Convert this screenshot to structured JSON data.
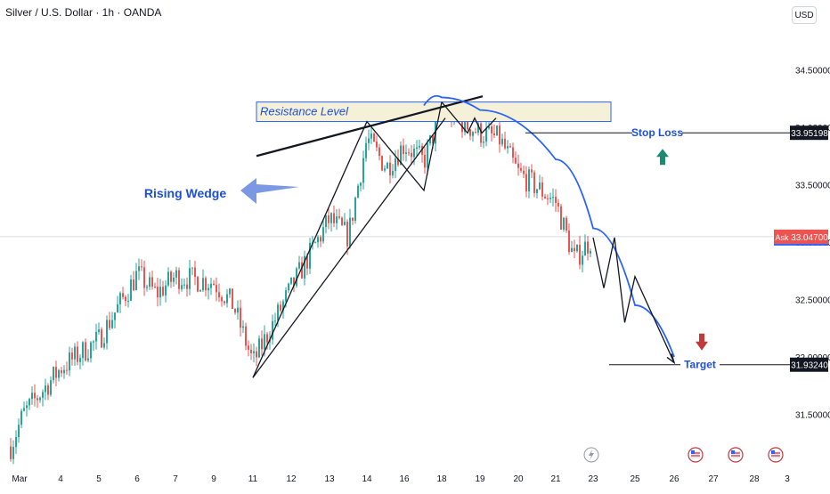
{
  "header": {
    "title": "Silver / U.S. Dollar · 1h · OANDA",
    "currency": "USD"
  },
  "annotations": {
    "resistance": "Resistance Level",
    "wedge": "Rising Wedge",
    "stop_loss": "Stop Loss",
    "target": "Target"
  },
  "price_labels": {
    "stop": "33.95198",
    "ask_tag": "Ask",
    "ask": "33.04700",
    "target": "31.93240"
  },
  "colors": {
    "up": "#26a69a",
    "down": "#ef5350",
    "curve": "#2962ff",
    "text_blue": "#1e4fd8",
    "resistance_fill": "#f5f0d8",
    "arrow_blue": "#7a98e3",
    "green_arrow": "#1e8a6e",
    "red_arrow": "#c0393b",
    "ask": "#ef5350"
  },
  "chart_data": {
    "type": "candlestick",
    "title": "Silver / U.S. Dollar · 1h · OANDA",
    "ylabel": "",
    "ylim": [
      31.2,
      35.0
    ],
    "y_ticks": [
      31.5,
      32.0,
      32.5,
      33.0,
      33.5,
      34.0,
      34.5
    ],
    "y_tick_labels": [
      "31.50000",
      "32.00000",
      "32.50000",
      "33.00000",
      "33.50000",
      "34.00000",
      "34.50000"
    ],
    "x_ticks": [
      "Mar",
      "4",
      "5",
      "6",
      "7",
      "9",
      "11",
      "12",
      "13",
      "14",
      "16",
      "18",
      "19",
      "20",
      "21",
      "23",
      "25",
      "26",
      "27",
      "28",
      "3"
    ],
    "x_ticks_are_dates": true,
    "close_path": [
      [
        "Mar 2",
        31.22
      ],
      [
        "Mar 3",
        31.5
      ],
      [
        "Mar 4",
        31.9
      ],
      [
        "Mar 5",
        32.15
      ],
      [
        "Mar 6",
        32.72
      ],
      [
        "Mar 6 12:00",
        32.55
      ],
      [
        "Mar 7",
        32.7
      ],
      [
        "Mar 9",
        32.65
      ],
      [
        "Mar 10",
        32.45
      ],
      [
        "Mar 11",
        31.95
      ],
      [
        "Mar 12",
        32.6
      ],
      [
        "Mar 13",
        33.2
      ],
      [
        "Mar 13 12:00",
        33.05
      ],
      [
        "Mar 14",
        33.9
      ],
      [
        "Mar 15",
        33.65
      ],
      [
        "Mar 16",
        33.85
      ],
      [
        "Mar 17",
        33.7
      ],
      [
        "Mar 18",
        34.15
      ],
      [
        "Mar 19",
        33.95
      ],
      [
        "Mar 19 12:00",
        33.9
      ],
      [
        "Mar 20",
        33.6
      ],
      [
        "Mar 21",
        33.35
      ],
      [
        "Mar 21 12:00",
        33.1
      ],
      [
        "Mar 22",
        32.85
      ],
      [
        "Mar 23",
        33.04
      ]
    ],
    "series": [
      {
        "name": "Resistance Level",
        "kind": "zone",
        "y_range": [
          34.05,
          34.22
        ]
      },
      {
        "name": "Stop Loss",
        "kind": "hline",
        "value": 33.95198
      },
      {
        "name": "Target",
        "kind": "hline",
        "value": 31.9324
      },
      {
        "name": "Rising Wedge",
        "kind": "pattern",
        "points": [
          [
            "Mar 11",
            31.82
          ],
          [
            "Mar 14",
            34.05
          ],
          [
            "Mar 17",
            33.45
          ],
          [
            "Mar 18",
            34.22
          ]
        ]
      },
      {
        "name": "Projection",
        "kind": "zigzag",
        "points": [
          [
            "Mar 23",
            33.04
          ],
          [
            "Mar 23 12:00",
            32.6
          ],
          [
            "Mar 24",
            33.04
          ],
          [
            "Mar 24 12:00",
            32.3
          ],
          [
            "Mar 25",
            32.7
          ],
          [
            "Mar 26",
            31.95
          ]
        ]
      },
      {
        "name": "Arc",
        "kind": "curve",
        "points": [
          [
            "Mar 17",
            34.19
          ],
          [
            "Mar 18",
            34.26
          ],
          [
            "Mar 19",
            34.15
          ],
          [
            "Mar 21",
            33.72
          ],
          [
            "Mar 23",
            33.12
          ],
          [
            "Mar 25",
            32.45
          ],
          [
            "Mar 26",
            32.0
          ]
        ]
      }
    ]
  }
}
